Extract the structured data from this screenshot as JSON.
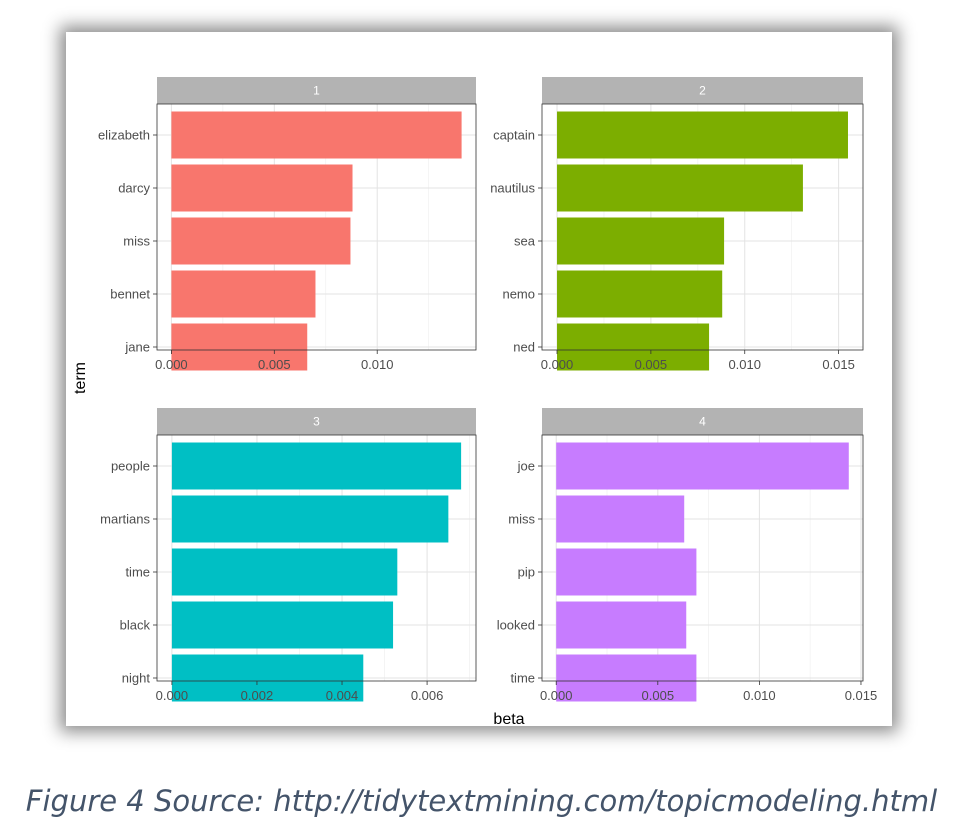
{
  "caption": "Figure 4 Source: http://tidytextmining.com/topicmodeling.html",
  "chart_data": {
    "type": "bar",
    "orientation": "horizontal",
    "xlabel": "beta",
    "ylabel": "term",
    "facets": [
      {
        "strip": "1",
        "color": "#F8766D",
        "categories": [
          "elizabeth",
          "darcy",
          "miss",
          "bennet",
          "jane"
        ],
        "values": [
          0.0141,
          0.0088,
          0.0087,
          0.007,
          0.0066
        ],
        "xlim": [
          -0.0007,
          0.0148
        ],
        "xticks": [
          0.0,
          0.005,
          0.01
        ],
        "xtick_labels": [
          "0.000",
          "0.005",
          "0.010"
        ]
      },
      {
        "strip": "2",
        "color": "#7CAE00",
        "categories": [
          "captain",
          "nautilus",
          "sea",
          "nemo",
          "ned"
        ],
        "values": [
          0.0155,
          0.0131,
          0.0089,
          0.0088,
          0.0081
        ],
        "xlim": [
          -0.0008,
          0.0163
        ],
        "xticks": [
          0.0,
          0.005,
          0.01,
          0.015
        ],
        "xtick_labels": [
          "0.000",
          "0.005",
          "0.010",
          "0.015"
        ]
      },
      {
        "strip": "3",
        "color": "#00BFC4",
        "categories": [
          "people",
          "martians",
          "time",
          "black",
          "night"
        ],
        "values": [
          0.0068,
          0.0065,
          0.0053,
          0.0052,
          0.0045
        ],
        "xlim": [
          -0.00035,
          0.00715
        ],
        "xticks": [
          0.0,
          0.002,
          0.004,
          0.006
        ],
        "xtick_labels": [
          "0.000",
          "0.002",
          "0.004",
          "0.006"
        ]
      },
      {
        "strip": "4",
        "color": "#C77CFF",
        "categories": [
          "joe",
          "miss",
          "pip",
          "looked",
          "time"
        ],
        "values": [
          0.0144,
          0.0063,
          0.0069,
          0.0064,
          0.0069
        ],
        "xlim": [
          -0.0007,
          0.0151
        ],
        "xticks": [
          0.0,
          0.005,
          0.01,
          0.015
        ],
        "xtick_labels": [
          "0.000",
          "0.005",
          "0.010",
          "0.015"
        ]
      }
    ]
  }
}
